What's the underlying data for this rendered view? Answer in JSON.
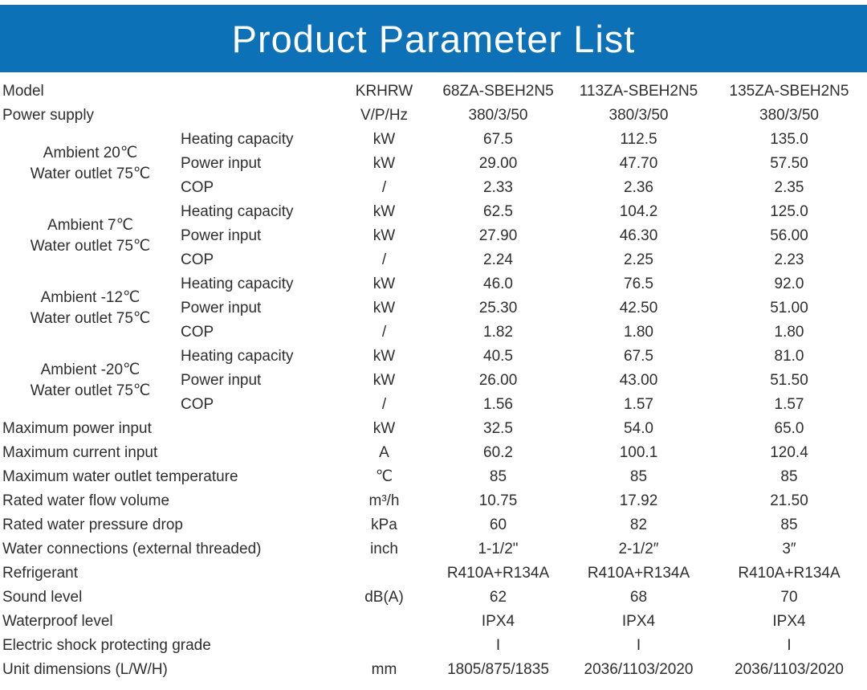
{
  "title": "Product Parameter List",
  "colors": {
    "banner_blue": "#0d71b8",
    "row_shade_gray": "#e4e4e4",
    "text": "#2e2e2e",
    "title_text": "#ffffff"
  },
  "rows": [
    {
      "type": "simple",
      "label": "Model",
      "unit": "KRHRW",
      "values": [
        "68ZA-SBEH2N5",
        "113ZA-SBEH2N5",
        "135ZA-SBEH2N5"
      ]
    },
    {
      "type": "simple",
      "label": "Power supply",
      "unit": "V/P/Hz",
      "values": [
        "380/3/50",
        "380/3/50",
        "380/3/50"
      ]
    },
    {
      "type": "group",
      "label_line1": "Ambient 20℃",
      "label_line2": "Water outlet 75℃",
      "subrows": [
        {
          "label": "Heating capacity",
          "unit": "kW",
          "values": [
            "67.5",
            "112.5",
            "135.0"
          ]
        },
        {
          "label": "Power input",
          "unit": "kW",
          "values": [
            "29.00",
            "47.70",
            "57.50"
          ]
        },
        {
          "label": "COP",
          "unit": "/",
          "values": [
            "2.33",
            "2.36",
            "2.35"
          ]
        }
      ]
    },
    {
      "type": "group",
      "label_line1": "Ambient 7℃",
      "label_line2": "Water outlet 75℃",
      "subrows": [
        {
          "label": "Heating capacity",
          "unit": "kW",
          "values": [
            "62.5",
            "104.2",
            "125.0"
          ]
        },
        {
          "label": "Power input",
          "unit": "kW",
          "values": [
            "27.90",
            "46.30",
            "56.00"
          ]
        },
        {
          "label": "COP",
          "unit": "/",
          "values": [
            "2.24",
            "2.25",
            "2.23"
          ]
        }
      ]
    },
    {
      "type": "group",
      "label_line1": "Ambient -12℃",
      "label_line2": "Water outlet 75℃",
      "subrows": [
        {
          "label": "Heating capacity",
          "unit": "kW",
          "values": [
            "46.0",
            "76.5",
            "92.0"
          ]
        },
        {
          "label": "Power input",
          "unit": "kW",
          "values": [
            "25.30",
            "42.50",
            "51.00"
          ]
        },
        {
          "label": "COP",
          "unit": "/",
          "values": [
            "1.82",
            "1.80",
            "1.80"
          ]
        }
      ]
    },
    {
      "type": "group",
      "label_line1": "Ambient -20℃",
      "label_line2": "Water outlet 75℃",
      "subrows": [
        {
          "label": "Heating capacity",
          "unit": "kW",
          "values": [
            "40.5",
            "67.5",
            "81.0"
          ]
        },
        {
          "label": "Power input",
          "unit": "kW",
          "values": [
            "26.00",
            "43.00",
            "51.50"
          ]
        },
        {
          "label": "COP",
          "unit": "/",
          "values": [
            "1.56",
            "1.57",
            "1.57"
          ]
        }
      ]
    },
    {
      "type": "simple",
      "label": "Maximum power input",
      "unit": "kW",
      "values": [
        "32.5",
        "54.0",
        "65.0"
      ]
    },
    {
      "type": "simple",
      "label": "Maximum current input",
      "unit": "A",
      "values": [
        "60.2",
        "100.1",
        "120.4"
      ]
    },
    {
      "type": "simple",
      "label": "Maximum water outlet temperature",
      "unit": "℃",
      "values": [
        "85",
        "85",
        "85"
      ]
    },
    {
      "type": "simple",
      "label": "Rated water flow volume",
      "unit": "m³/h",
      "values": [
        "10.75",
        "17.92",
        "21.50"
      ]
    },
    {
      "type": "simple",
      "label": "Rated water pressure drop",
      "unit": "kPa",
      "values": [
        "60",
        "82",
        "85"
      ]
    },
    {
      "type": "simple",
      "label": "Water connections (external threaded)",
      "unit": "inch",
      "values": [
        "1-1/2\"",
        "2-1/2″",
        "3″"
      ]
    },
    {
      "type": "simple",
      "label": "Refrigerant",
      "unit": "",
      "values": [
        "R410A+R134A",
        "R410A+R134A",
        "R410A+R134A"
      ]
    },
    {
      "type": "simple",
      "label": "Sound level",
      "unit": "dB(A)",
      "values": [
        "62",
        "68",
        "70"
      ]
    },
    {
      "type": "simple",
      "label": "Waterproof level",
      "unit": "",
      "values": [
        "IPX4",
        "IPX4",
        "IPX4"
      ]
    },
    {
      "type": "simple",
      "label": "Electric shock protecting grade",
      "unit": "",
      "values": [
        "I",
        "I",
        "I"
      ]
    },
    {
      "type": "simple",
      "label": "Unit dimensions (L/W/H)",
      "unit": "mm",
      "values": [
        "1805/875/1835",
        "2036/1103/2020",
        "2036/1103/2020"
      ]
    }
  ]
}
